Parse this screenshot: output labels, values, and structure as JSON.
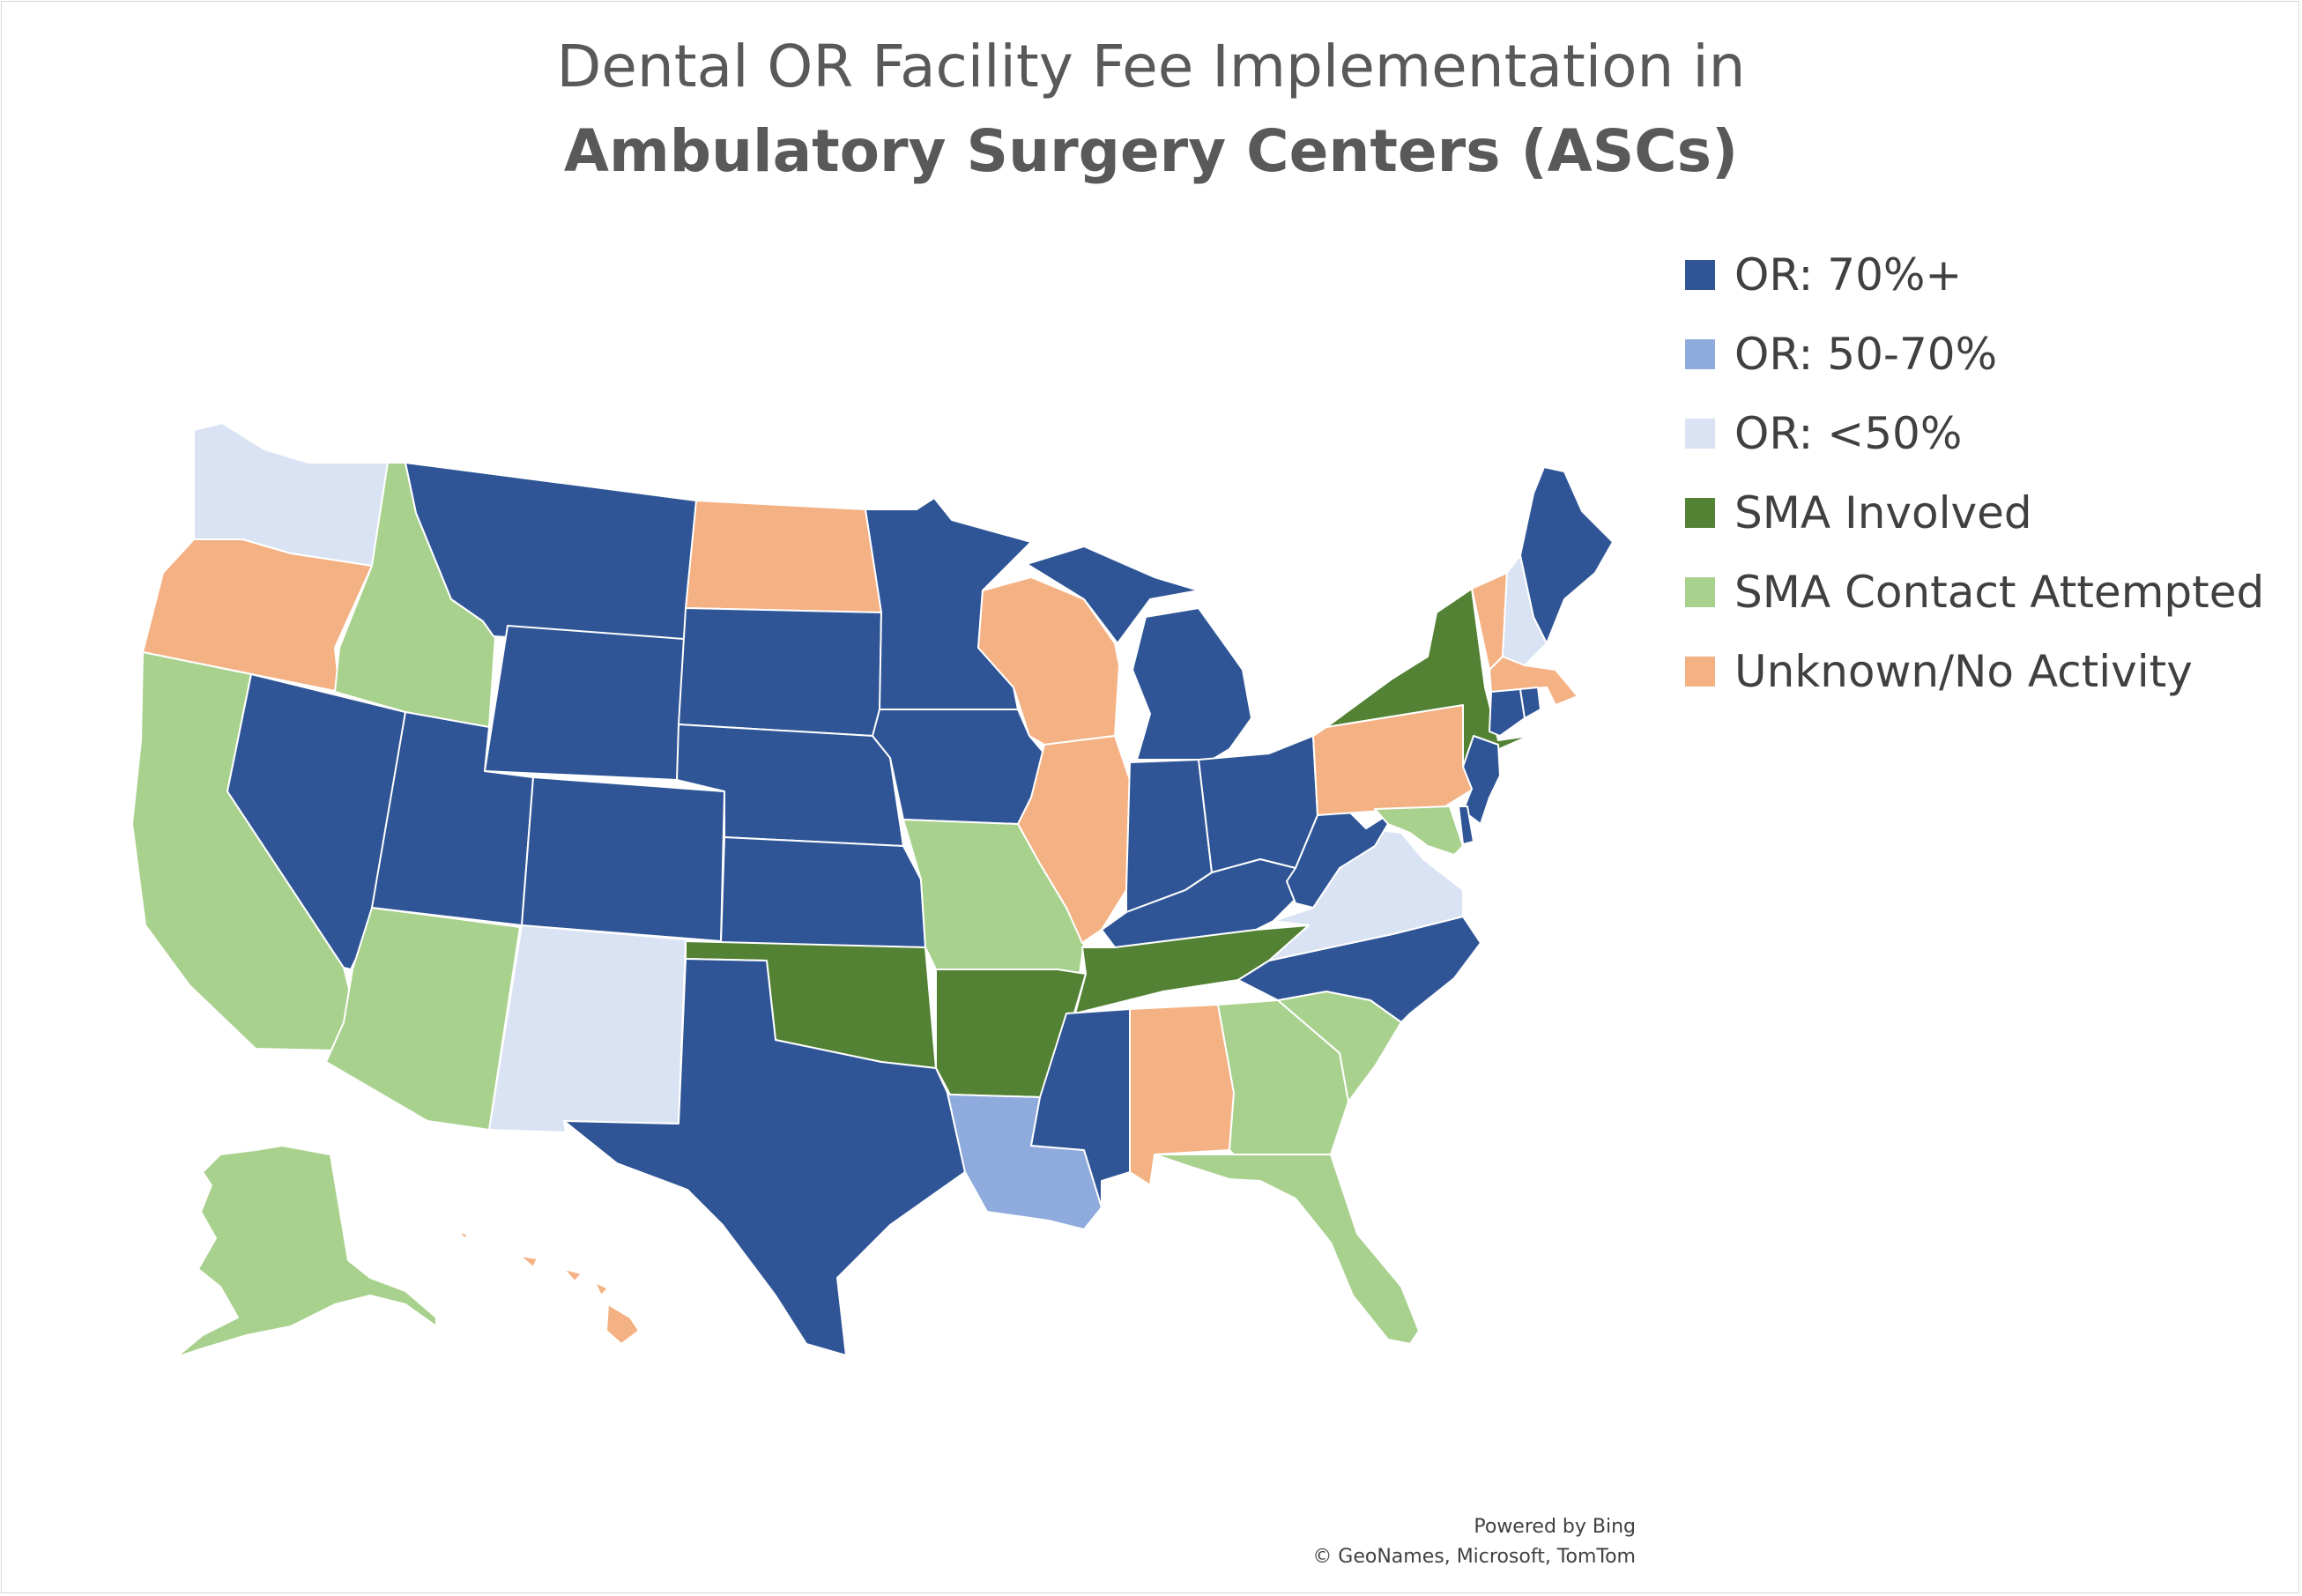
{
  "title": {
    "line1": "Dental OR Facility Fee Implementation in",
    "line2": "Ambulatory Surgery Centers (ASCs)"
  },
  "legend": [
    {
      "key": "or70",
      "label": "OR: 70%+",
      "color": "#2F5597"
    },
    {
      "key": "or50",
      "label": "OR: 50-70%",
      "color": "#8FAADC"
    },
    {
      "key": "orlt50",
      "label": "OR: <50%",
      "color": "#DAE3F3"
    },
    {
      "key": "sma",
      "label": "SMA Involved",
      "color": "#548235"
    },
    {
      "key": "smaAttempt",
      "label": "SMA Contact Attempted",
      "color": "#A9D18E"
    },
    {
      "key": "unknown",
      "label": "Unknown/No Activity",
      "color": "#F4B183"
    }
  ],
  "states": {
    "WA": "orlt50",
    "OR": "unknown",
    "CA": "smaAttempt",
    "NV": "or70",
    "ID": "smaAttempt",
    "MT": "or70",
    "WY": "or70",
    "UT": "or70",
    "AZ": "smaAttempt",
    "CO": "or70",
    "NM": "orlt50",
    "ND": "unknown",
    "SD": "or70",
    "NE": "or70",
    "KS": "or70",
    "OK": "sma",
    "TX": "or70",
    "MN": "or70",
    "IA": "or70",
    "MO": "smaAttempt",
    "AR": "sma",
    "LA": "or50",
    "WI": "unknown",
    "IL": "unknown",
    "MI": "or70",
    "IN": "or70",
    "OH": "or70",
    "KY": "or70",
    "TN": "sma",
    "MS": "or70",
    "AL": "unknown",
    "GA": "smaAttempt",
    "FL": "smaAttempt",
    "SC": "smaAttempt",
    "NC": "or70",
    "VA": "orlt50",
    "WV": "or70",
    "PA": "unknown",
    "NY": "sma",
    "VT": "unknown",
    "NH": "orlt50",
    "ME": "or70",
    "MA": "unknown",
    "CT": "or70",
    "RI": "or70",
    "NJ": "or70",
    "DE": "or70",
    "MD": "smaAttempt",
    "AK": "smaAttempt",
    "HI": "unknown"
  },
  "credit": {
    "line1": "Powered by Bing",
    "line2": "© GeoNames, Microsoft, TomTom"
  }
}
